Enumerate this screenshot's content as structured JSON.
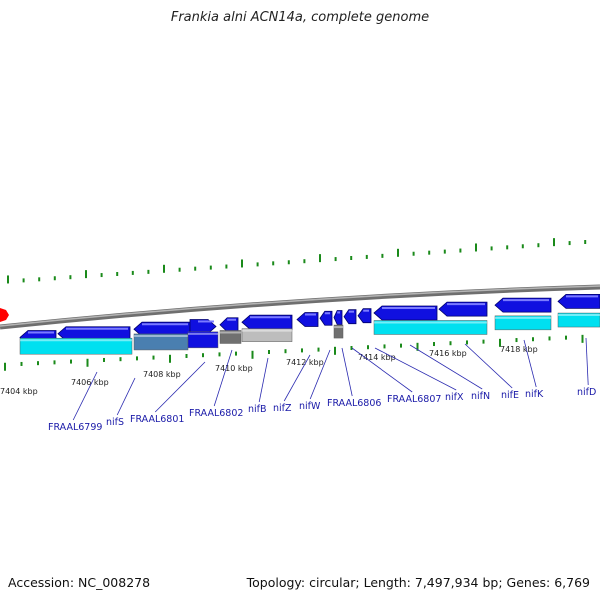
{
  "title": "Frankia alni ACN14a, complete genome",
  "footer": {
    "accession": "Accession: NC_008278",
    "summary": "Topology: circular; Length: 7,497,934 bp; Genes: 6,769"
  },
  "colors": {
    "background": "#ffffff",
    "forward_gene": "#1010e0",
    "cds": "#00e0f0",
    "cds_shaded": "#4a7fb0",
    "pseudo_dark": "#707070",
    "pseudo_light": "#bdbdbd",
    "tick": "#1a8a1a",
    "backbone": "#8a8a8a",
    "origin_marker": "#ff0000",
    "label": "#1a1aa8"
  },
  "kbp_labels": [
    "7404 kbp",
    "7406 kbp",
    "7408 kbp",
    "7410 kbp",
    "7412 kbp",
    "7414 kbp",
    "7416 kbp",
    "7418 kbp"
  ],
  "gene_labels": [
    "FRAAL6799",
    "nifS",
    "FRAAL6801",
    "FRAAL6802",
    "nifB",
    "nifZ",
    "nifW",
    "FRAAL6806",
    "FRAAL6807",
    "nifX",
    "nifN",
    "nifE",
    "nifK",
    "nifD"
  ]
}
